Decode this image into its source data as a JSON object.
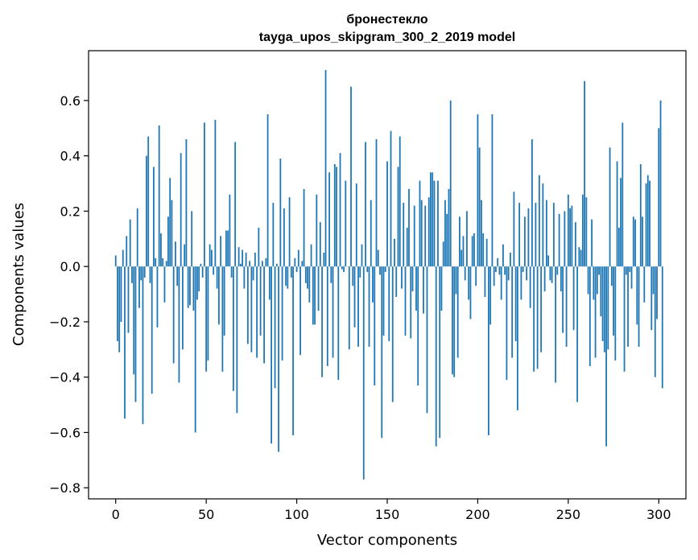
{
  "chart_data": {
    "type": "bar",
    "title_line1": "бронестекло",
    "title_line2": "tayga_upos_skipgram_300_2_2019 model",
    "xlabel": "Vector components",
    "ylabel": "Components values",
    "xlim": [
      -15,
      315
    ],
    "ylim": [
      -0.84,
      0.78
    ],
    "xticks": [
      0,
      50,
      100,
      150,
      200,
      250,
      300
    ],
    "yticks": [
      -0.8,
      -0.6,
      -0.4,
      -0.2,
      0.0,
      0.2,
      0.4,
      0.6
    ],
    "ytick_labels": [
      "−0.8",
      "−0.6",
      "−0.4",
      "−0.2",
      "0.0",
      "0.2",
      "0.4",
      "0.6"
    ],
    "grid": false,
    "bar_color": "#1f77b4",
    "values": [
      0.04,
      -0.27,
      -0.31,
      -0.2,
      0.06,
      -0.55,
      0.11,
      -0.24,
      0.17,
      -0.06,
      -0.39,
      -0.49,
      0.21,
      -0.15,
      -0.05,
      -0.57,
      -0.04,
      0.4,
      0.47,
      -0.06,
      -0.46,
      0.36,
      0.03,
      -0.22,
      0.51,
      0.12,
      0.03,
      -0.13,
      0.02,
      0.18,
      0.32,
      0.24,
      -0.35,
      0.09,
      -0.07,
      -0.42,
      0.41,
      -0.3,
      0.08,
      0.46,
      -0.15,
      -0.14,
      0.2,
      -0.16,
      -0.6,
      -0.12,
      -0.09,
      0.01,
      -0.04,
      0.52,
      -0.38,
      -0.34,
      0.08,
      0.06,
      -0.03,
      0.53,
      -0.08,
      -0.21,
      0.11,
      -0.38,
      -0.25,
      0.13,
      0.13,
      0.26,
      -0.04,
      -0.45,
      0.45,
      -0.53,
      0.07,
      0.01,
      0.06,
      -0.08,
      0.05,
      -0.28,
      0.02,
      -0.31,
      -0.05,
      0.05,
      -0.33,
      0.14,
      -0.25,
      0.02,
      -0.35,
      0.03,
      0.55,
      -0.12,
      -0.64,
      0.23,
      -0.44,
      0.01,
      -0.67,
      0.39,
      -0.34,
      0.21,
      -0.07,
      -0.08,
      0.25,
      -0.04,
      -0.61,
      0.03,
      -0.02,
      0.06,
      -0.32,
      0.02,
      0.28,
      -0.06,
      -0.08,
      -0.13,
      0.08,
      -0.21,
      -0.21,
      0.26,
      -0.16,
      0.16,
      -0.4,
      0.05,
      0.71,
      -0.36,
      0.34,
      -0.06,
      -0.33,
      0.37,
      0.36,
      -0.41,
      0.41,
      -0.01,
      -0.02,
      0.31,
      0.0,
      -0.3,
      0.65,
      -0.07,
      -0.22,
      0.3,
      -0.29,
      -0.04,
      0.08,
      -0.77,
      0.45,
      -0.02,
      -0.29,
      0.24,
      -0.13,
      -0.43,
      0.46,
      0.06,
      -0.03,
      -0.62,
      -0.25,
      -0.02,
      0.38,
      -0.27,
      0.49,
      -0.49,
      0.1,
      -0.11,
      0.36,
      0.47,
      -0.08,
      0.23,
      -0.25,
      0.14,
      0.28,
      -0.26,
      -0.09,
      0.22,
      -0.16,
      -0.43,
      0.31,
      0.24,
      -0.17,
      0.22,
      -0.53,
      0.25,
      0.34,
      0.34,
      0.31,
      -0.65,
      0.31,
      -0.62,
      -0.16,
      0.09,
      0.24,
      0.19,
      0.28,
      0.6,
      -0.39,
      -0.4,
      -0.1,
      -0.33,
      0.18,
      0.06,
      0.11,
      -0.05,
      0.2,
      -0.12,
      -0.19,
      0.11,
      0.12,
      -0.07,
      0.55,
      0.43,
      0.24,
      0.12,
      -0.11,
      0.1,
      -0.61,
      -0.21,
      0.55,
      -0.07,
      -0.02,
      0.03,
      -0.03,
      -0.12,
      0.08,
      -0.03,
      -0.41,
      -0.05,
      0.05,
      -0.33,
      0.27,
      -0.27,
      -0.52,
      0.23,
      -0.12,
      -0.02,
      0.18,
      -0.05,
      0.21,
      -0.15,
      0.46,
      -0.38,
      0.23,
      -0.37,
      0.33,
      -0.31,
      0.3,
      -0.09,
      0.24,
      0.04,
      -0.05,
      -0.06,
      0.23,
      -0.42,
      -0.03,
      0.19,
      -0.09,
      -0.24,
      0.2,
      -0.29,
      0.26,
      0.21,
      0.22,
      -0.23,
      0.16,
      -0.49,
      0.07,
      0.06,
      0.26,
      0.67,
      0.25,
      -0.1,
      -0.36,
      0.17,
      -0.12,
      -0.33,
      -0.1,
      -0.03,
      -0.18,
      -0.27,
      -0.31,
      -0.65,
      -0.3,
      0.43,
      -0.07,
      -0.25,
      -0.34,
      0.38,
      0.14,
      0.32,
      0.52,
      -0.38,
      -0.03,
      -0.29,
      -0.02,
      -0.08,
      0.18,
      0.17,
      -0.21,
      -0.29,
      0.37,
      0.18,
      -0.13,
      0.3,
      0.33,
      0.31,
      -0.23,
      -0.1,
      -0.4,
      -0.19,
      0.5,
      0.6,
      -0.44
    ]
  }
}
